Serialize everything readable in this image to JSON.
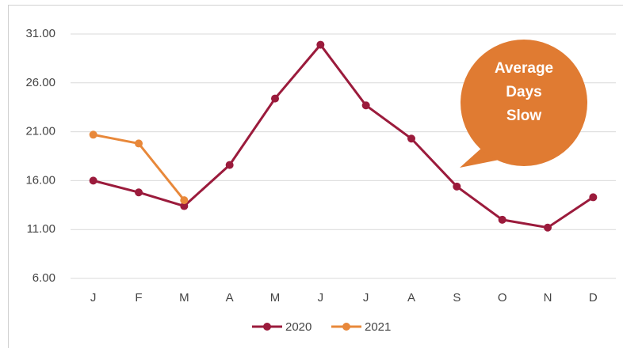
{
  "chart_data": {
    "type": "line",
    "categories": [
      "J",
      "F",
      "M",
      "A",
      "M",
      "J",
      "J",
      "A",
      "S",
      "O",
      "N",
      "D"
    ],
    "series": [
      {
        "name": "2020",
        "color": "#9b1b3c",
        "values": [
          16.0,
          14.8,
          13.4,
          17.6,
          24.4,
          29.9,
          23.7,
          20.3,
          15.4,
          12.0,
          11.2,
          14.3
        ]
      },
      {
        "name": "2021",
        "color": "#e8883a",
        "values": [
          20.7,
          19.8,
          14.0,
          null,
          null,
          null,
          null,
          null,
          null,
          null,
          null,
          null
        ]
      }
    ],
    "ylim": [
      6,
      31
    ],
    "yticks": [
      {
        "value": 6,
        "label": "6.00"
      },
      {
        "value": 11,
        "label": "11.00"
      },
      {
        "value": 16,
        "label": "16.00"
      },
      {
        "value": 21,
        "label": "21.00"
      },
      {
        "value": 26,
        "label": "26.00"
      },
      {
        "value": 31,
        "label": "31.00"
      }
    ],
    "grid": true,
    "legend": "bottom",
    "annotation": [
      "Average",
      "Days",
      "Slow"
    ],
    "annotation_color": "#e07b32"
  }
}
